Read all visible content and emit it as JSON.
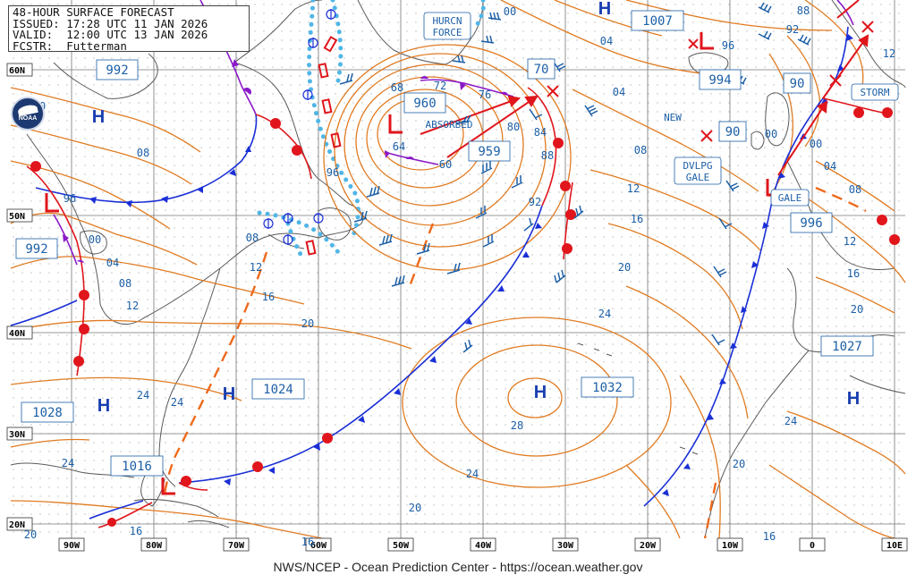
{
  "header": {
    "line1": "48-HOUR SURFACE FORECAST",
    "line2": "ISSUED: 17:28 UTC 11 JAN 2026",
    "line3": "VALID:  12:00 UTC 13 JAN 2026",
    "line4": "FCSTR:  Futterman"
  },
  "logo": {
    "text": "NOAA"
  },
  "footer": {
    "credit": "NWS/NCEP - Ocean Prediction Center - https://ocean.weather.gov"
  },
  "lat_labels": [
    "60N",
    "50N",
    "40N",
    "30N",
    "20N"
  ],
  "lon_labels": [
    "90W",
    "80W",
    "70W",
    "60W",
    "50W",
    "40W",
    "30W",
    "20W",
    "10W",
    "0",
    "10E"
  ],
  "systems": [
    {
      "type": "H",
      "pressure": ""
    },
    {
      "type": "H",
      "pressure": "1024"
    },
    {
      "type": "H",
      "pressure": "1032"
    },
    {
      "type": "H",
      "pressure": "1027"
    },
    {
      "type": "H",
      "pressure": "1028"
    },
    {
      "type": "H",
      "pressure": ""
    },
    {
      "type": "L",
      "pressure": "960"
    },
    {
      "type": "L",
      "pressure": "959"
    },
    {
      "type": "L",
      "pressure": "992"
    },
    {
      "type": "L",
      "pressure": "1016"
    },
    {
      "type": "L",
      "pressure": "1007"
    },
    {
      "type": "L",
      "pressure": "994"
    },
    {
      "type": "L",
      "pressure": "996"
    }
  ],
  "labels": {
    "hurcn_force": [
      "HURCN",
      "FORCE"
    ],
    "absorbed": "ABSORBED",
    "new": "NEW",
    "dvlpg_gale": [
      "DVLPG",
      "GALE"
    ],
    "gale": "GALE",
    "storm": "STORM",
    "pressure_992_nw": "992",
    "pressure_70": "70",
    "pressure_90": "90",
    "pressure_90b": "90"
  },
  "isobar_values": [
    "00",
    "04",
    "08",
    "12",
    "16",
    "20",
    "24",
    "28",
    "96",
    "92",
    "88",
    "84",
    "80",
    "76",
    "72",
    "68",
    "64",
    "60",
    "10"
  ],
  "colors": {
    "isobar": "#e07b22",
    "cold_front": "#1a2fd6",
    "warm_front": "#e0161c",
    "occluded": "#8a19c8",
    "ice_edge": "#4fb6e6",
    "land": "#5a5a5a",
    "wind_barb": "#1c5fa6",
    "label": "#1c5fa6"
  }
}
